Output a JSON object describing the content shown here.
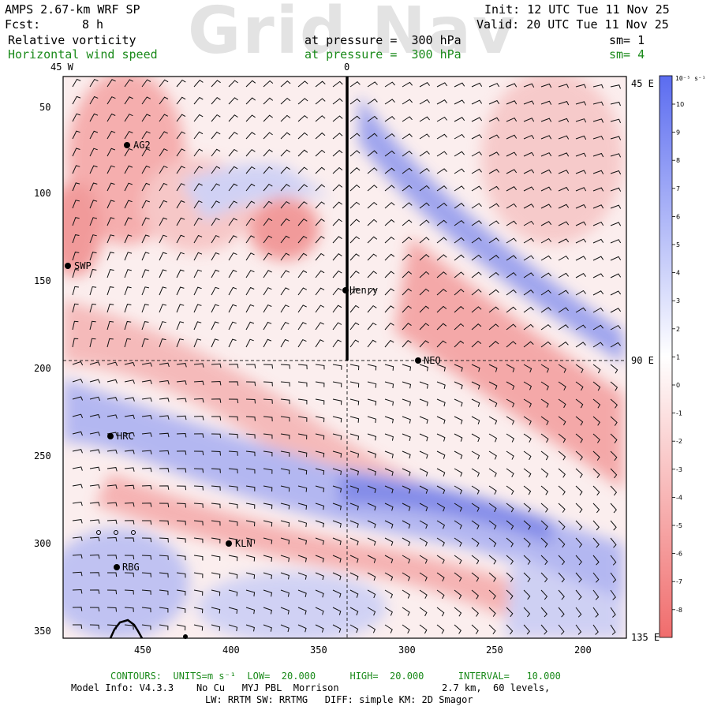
{
  "header": {
    "model_title": "AMPS 2.67-km WRF SP",
    "fcst_label": "Fcst:",
    "fcst_value": "8 h",
    "init": "Init: 12 UTC Tue 11 Nov 25",
    "valid": "Valid: 20 UTC Tue 11 Nov 25",
    "field1_name": "Relative vorticity",
    "field1_level": "at pressure =  300 hPa",
    "field1_sm": "sm= 1",
    "field2_name": "Horizontal wind speed",
    "field2_level": "at pressure =  300 hPa",
    "field2_sm": "sm= 4"
  },
  "watermark": "Grid Nav",
  "axes": {
    "top_labels": [
      "45 W",
      "0"
    ],
    "right_labels": [
      "45 E",
      "90 E",
      "135 E"
    ],
    "left_ticks": [
      "50",
      "100",
      "150",
      "200",
      "250",
      "300",
      "350"
    ],
    "bottom_ticks": [
      "450",
      "400",
      "350",
      "300",
      "250",
      "200"
    ]
  },
  "stations": [
    {
      "name": "AG2"
    },
    {
      "name": "SWP"
    },
    {
      "name": "Henry"
    },
    {
      "name": "NEO"
    },
    {
      "name": "HRC"
    },
    {
      "name": "KLN"
    },
    {
      "name": "RBG"
    }
  ],
  "colorbar": {
    "unit_label": "10⁻⁵ s⁻¹",
    "ticks": [
      "10",
      "9",
      "8",
      "7",
      "6",
      "5",
      "4",
      "3",
      "2",
      "1",
      "0",
      "-1",
      "-2",
      "-3",
      "-4",
      "-5",
      "-6",
      "-7",
      "-8"
    ],
    "positive_color": "#5b6cf0",
    "negative_color": "#f06c6c"
  },
  "footer": {
    "contours_label": "CONTOURS:",
    "units_label": "UNITS=m s⁻¹",
    "low": "LOW=  20.000",
    "high": "HIGH=  20.000",
    "interval": "INTERVAL=   10.000",
    "model_info": "Model Info: V4.3.3    No Cu   MYJ PBL  Morrison",
    "grid_info": "2.7 km,  60 levels,",
    "physics_info": "LW: RRTM SW: RRTMG   DIFF: simple KM: 2D Smagor"
  }
}
